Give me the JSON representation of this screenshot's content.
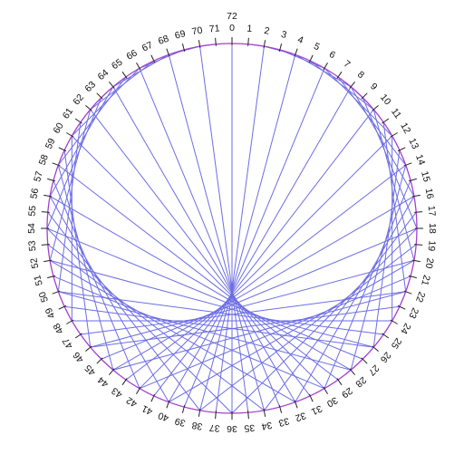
{
  "diagram": {
    "type": "modular-multiplication-circle",
    "modulus": 72,
    "multiplier": 2,
    "outer_top_label": "72",
    "tick_labels": [
      "0",
      "1",
      "2",
      "3",
      "4",
      "5",
      "6",
      "7",
      "8",
      "9",
      "10",
      "11",
      "12",
      "13",
      "14",
      "15",
      "16",
      "17",
      "18",
      "19",
      "20",
      "21",
      "22",
      "23",
      "24",
      "25",
      "26",
      "27",
      "28",
      "29",
      "30",
      "31",
      "32",
      "33",
      "34",
      "35",
      "36",
      "37",
      "38",
      "39",
      "40",
      "41",
      "42",
      "43",
      "44",
      "45",
      "46",
      "47",
      "48",
      "49",
      "50",
      "51",
      "52",
      "53",
      "54",
      "55",
      "56",
      "57",
      "58",
      "59",
      "60",
      "61",
      "62",
      "63",
      "64",
      "65",
      "66",
      "67",
      "68",
      "69",
      "70",
      "71"
    ],
    "colors": {
      "circle": "#a33fcf",
      "chord": "#6d6de4",
      "tick": "#222222",
      "label": "#111111",
      "background": "#ffffff"
    }
  }
}
